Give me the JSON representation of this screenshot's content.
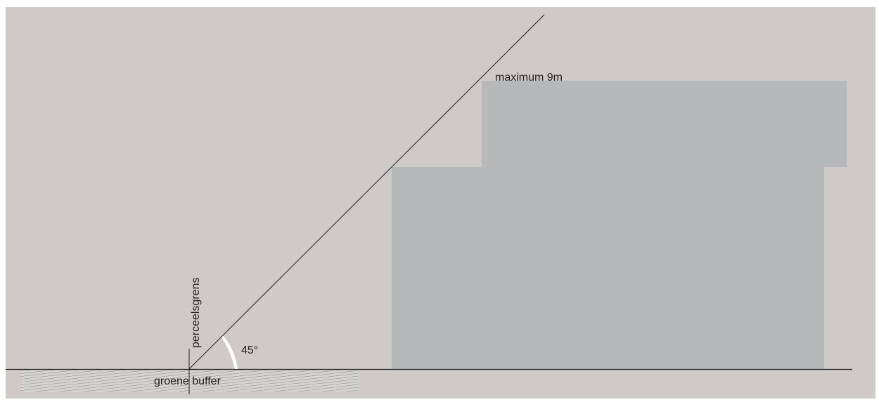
{
  "labels": {
    "height_limit": "maximum 9m",
    "boundary": "perceelsgrens",
    "buffer": "groene buffer",
    "angle": "45°"
  },
  "colors": {
    "background": "#cfcac8",
    "building": "#b7b8ba",
    "line": "#231f20",
    "angle_wedge": "#ffffff",
    "hatch_fill": "#d6d4d3",
    "hatch_line": "#8f8c8b"
  }
}
